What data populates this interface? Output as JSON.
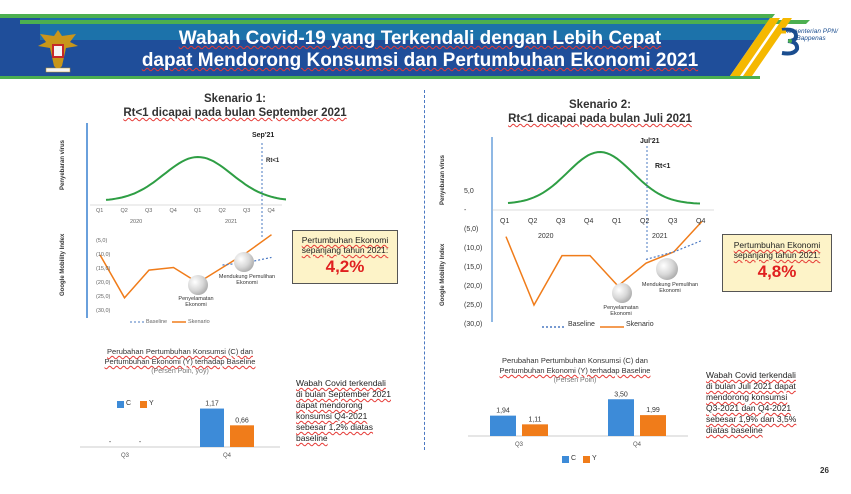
{
  "header": {
    "title_line1": "Wabah Covid-19 yang Terkendali dengan Lebih Cepat",
    "title_line2": "dapat Mendorong Konsumsi dan Pertumbuhan Ekonomi 2021",
    "logo_line1": "Kementerian PPN/",
    "logo_line2": "Bappenas",
    "colors": {
      "navy": "#1f4e9a",
      "teal": "#1a8fb8",
      "green": "#4caf50",
      "gold": "#f5b800"
    }
  },
  "left": {
    "scenario_title": "Skenario 1:",
    "scenario_subtitle": "Rt<1 dicapai pada bulan September 2021",
    "virus_axis_label": "Penyebaran virus",
    "mobility_axis_label": "Google Mobility Index",
    "marker_month": "Sep'21",
    "marker_rt": "Rt<1",
    "quarters": [
      "Q1",
      "Q2",
      "Q3",
      "Q4",
      "Q1",
      "Q2",
      "Q3",
      "Q4"
    ],
    "years": [
      "2020",
      "2021"
    ],
    "y_ticks": [
      "(5,0)",
      "(10,0)",
      "(15,0)",
      "(20,0)",
      "(25,0)",
      "(30,0)"
    ],
    "balloon1": "Penyelamatan Ekonomi",
    "balloon2": "Mendukung Pemulihan Ekonomi",
    "legend_baseline": "Baseline",
    "legend_scenario": "Skenario",
    "growth_label": "Pertumbuhan Ekonomi sepanjang tahun 2021:",
    "growth_value": "4,2%",
    "bar_title_line1": "Perubahan Pertumbuhan Konsumsi (C) dan",
    "bar_title_line2": "Pertumbuhan Ekonomi (Y) terhadap Baseline",
    "bar_subtitle": "(Persen Poin, yoy)",
    "legend_c": "C",
    "legend_y": "Y",
    "bar_categories": [
      "Q3",
      "Q4"
    ],
    "bar_c_labels": [
      "-",
      "1,17"
    ],
    "bar_y_labels": [
      "-",
      "0,66"
    ],
    "note": [
      "Wabah Covid terkendali",
      "di bulan September 2021",
      "dapat mendorong",
      "konsumsi Q4-2021",
      "sebesar 1,2% diatas",
      "baseline"
    ]
  },
  "right": {
    "scenario_title": "Skenario 2:",
    "scenario_subtitle": "Rt<1 dicapai pada bulan Juli 2021",
    "virus_axis_label": "Penyebaran virus",
    "mobility_axis_label": "Google Mobility Index",
    "marker_month": "Jul'21",
    "marker_rt": "Rt<1",
    "quarters": [
      "Q1",
      "Q2",
      "Q3",
      "Q4",
      "Q1",
      "Q2",
      "Q3",
      "Q4"
    ],
    "years": [
      "2020",
      "2021"
    ],
    "y_ticks": [
      "5,0",
      "-",
      "(5,0)",
      "(10,0)",
      "(15,0)",
      "(20,0)",
      "(25,0)",
      "(30,0)"
    ],
    "balloon1": "Penyelamatan Ekonomi",
    "balloon2": "Mendukung Pemulihan Ekonomi",
    "legend_baseline": "Baseline",
    "legend_scenario": "Skenario",
    "growth_label": "Pertumbuhan Ekonomi sepanjang tahun 2021:",
    "growth_value": "4,8%",
    "bar_title_line1": "Perubahan Pertumbuhan Konsumsi (C) dan",
    "bar_title_line2": "Pertumbuhan Ekonomi (Y) terhadap Baseline",
    "bar_subtitle": "(Persen Poin)",
    "legend_c": "C",
    "legend_y": "Y",
    "bar_categories": [
      "Q3",
      "Q4"
    ],
    "bar_c_labels": [
      "1,94",
      "3,50"
    ],
    "bar_y_labels": [
      "1,11",
      "1,99"
    ],
    "note": [
      "Wabah Covid terkendali",
      "di bulan Juli 2021 dapat",
      "mendorong konsumsi",
      "Q3-2021 dan Q4-2021",
      "sebesar 1,9% dan 3,5%",
      "diatas baseline"
    ]
  },
  "chart_data": [
    {
      "type": "bar",
      "categories": [
        "Q3",
        "Q4"
      ],
      "series": [
        {
          "name": "C",
          "values": [
            0,
            1.17
          ]
        },
        {
          "name": "Y",
          "values": [
            0,
            0.66
          ]
        }
      ],
      "title": "Perubahan Pertumbuhan Konsumsi (C) dan Pertumbuhan Ekonomi (Y) terhadap Baseline",
      "ylim": [
        0,
        1.4
      ],
      "colors": {
        "C": "#3d8bd8",
        "Y": "#f07c1a"
      }
    },
    {
      "type": "bar",
      "categories": [
        "Q3",
        "Q4"
      ],
      "series": [
        {
          "name": "C",
          "values": [
            1.94,
            3.5
          ]
        },
        {
          "name": "Y",
          "values": [
            1.11,
            1.99
          ]
        }
      ],
      "title": "Perubahan Pertumbuhan Konsumsi (C) dan Pertumbuhan Ekonomi (Y) terhadap Baseline",
      "ylim": [
        0,
        4
      ],
      "colors": {
        "C": "#3d8bd8",
        "Y": "#f07c1a"
      }
    },
    {
      "type": "line",
      "x": [
        "Q1",
        "Q2",
        "Q3",
        "Q4",
        "Q1",
        "Q2",
        "Q3",
        "Q4"
      ],
      "series": [
        {
          "name": "Skenario",
          "values": [
            -7,
            -24,
            -13,
            -12,
            -18,
            -12,
            -6,
            1
          ]
        },
        {
          "name": "Baseline",
          "values": [
            null,
            null,
            null,
            null,
            null,
            -11,
            -10,
            -8
          ]
        }
      ],
      "ylim": [
        -30,
        8
      ]
    },
    {
      "type": "line",
      "x": [
        "Q1",
        "Q2",
        "Q3",
        "Q4",
        "Q1",
        "Q2",
        "Q3",
        "Q4"
      ],
      "series": [
        {
          "name": "Skenario",
          "values": [
            -7,
            -25,
            -12,
            -12,
            -20,
            -14,
            -11,
            -3
          ]
        },
        {
          "name": "Baseline",
          "values": [
            null,
            null,
            null,
            null,
            null,
            -13,
            -11,
            -8
          ]
        }
      ],
      "ylim": [
        -30,
        0
      ]
    }
  ],
  "page_number": "26"
}
